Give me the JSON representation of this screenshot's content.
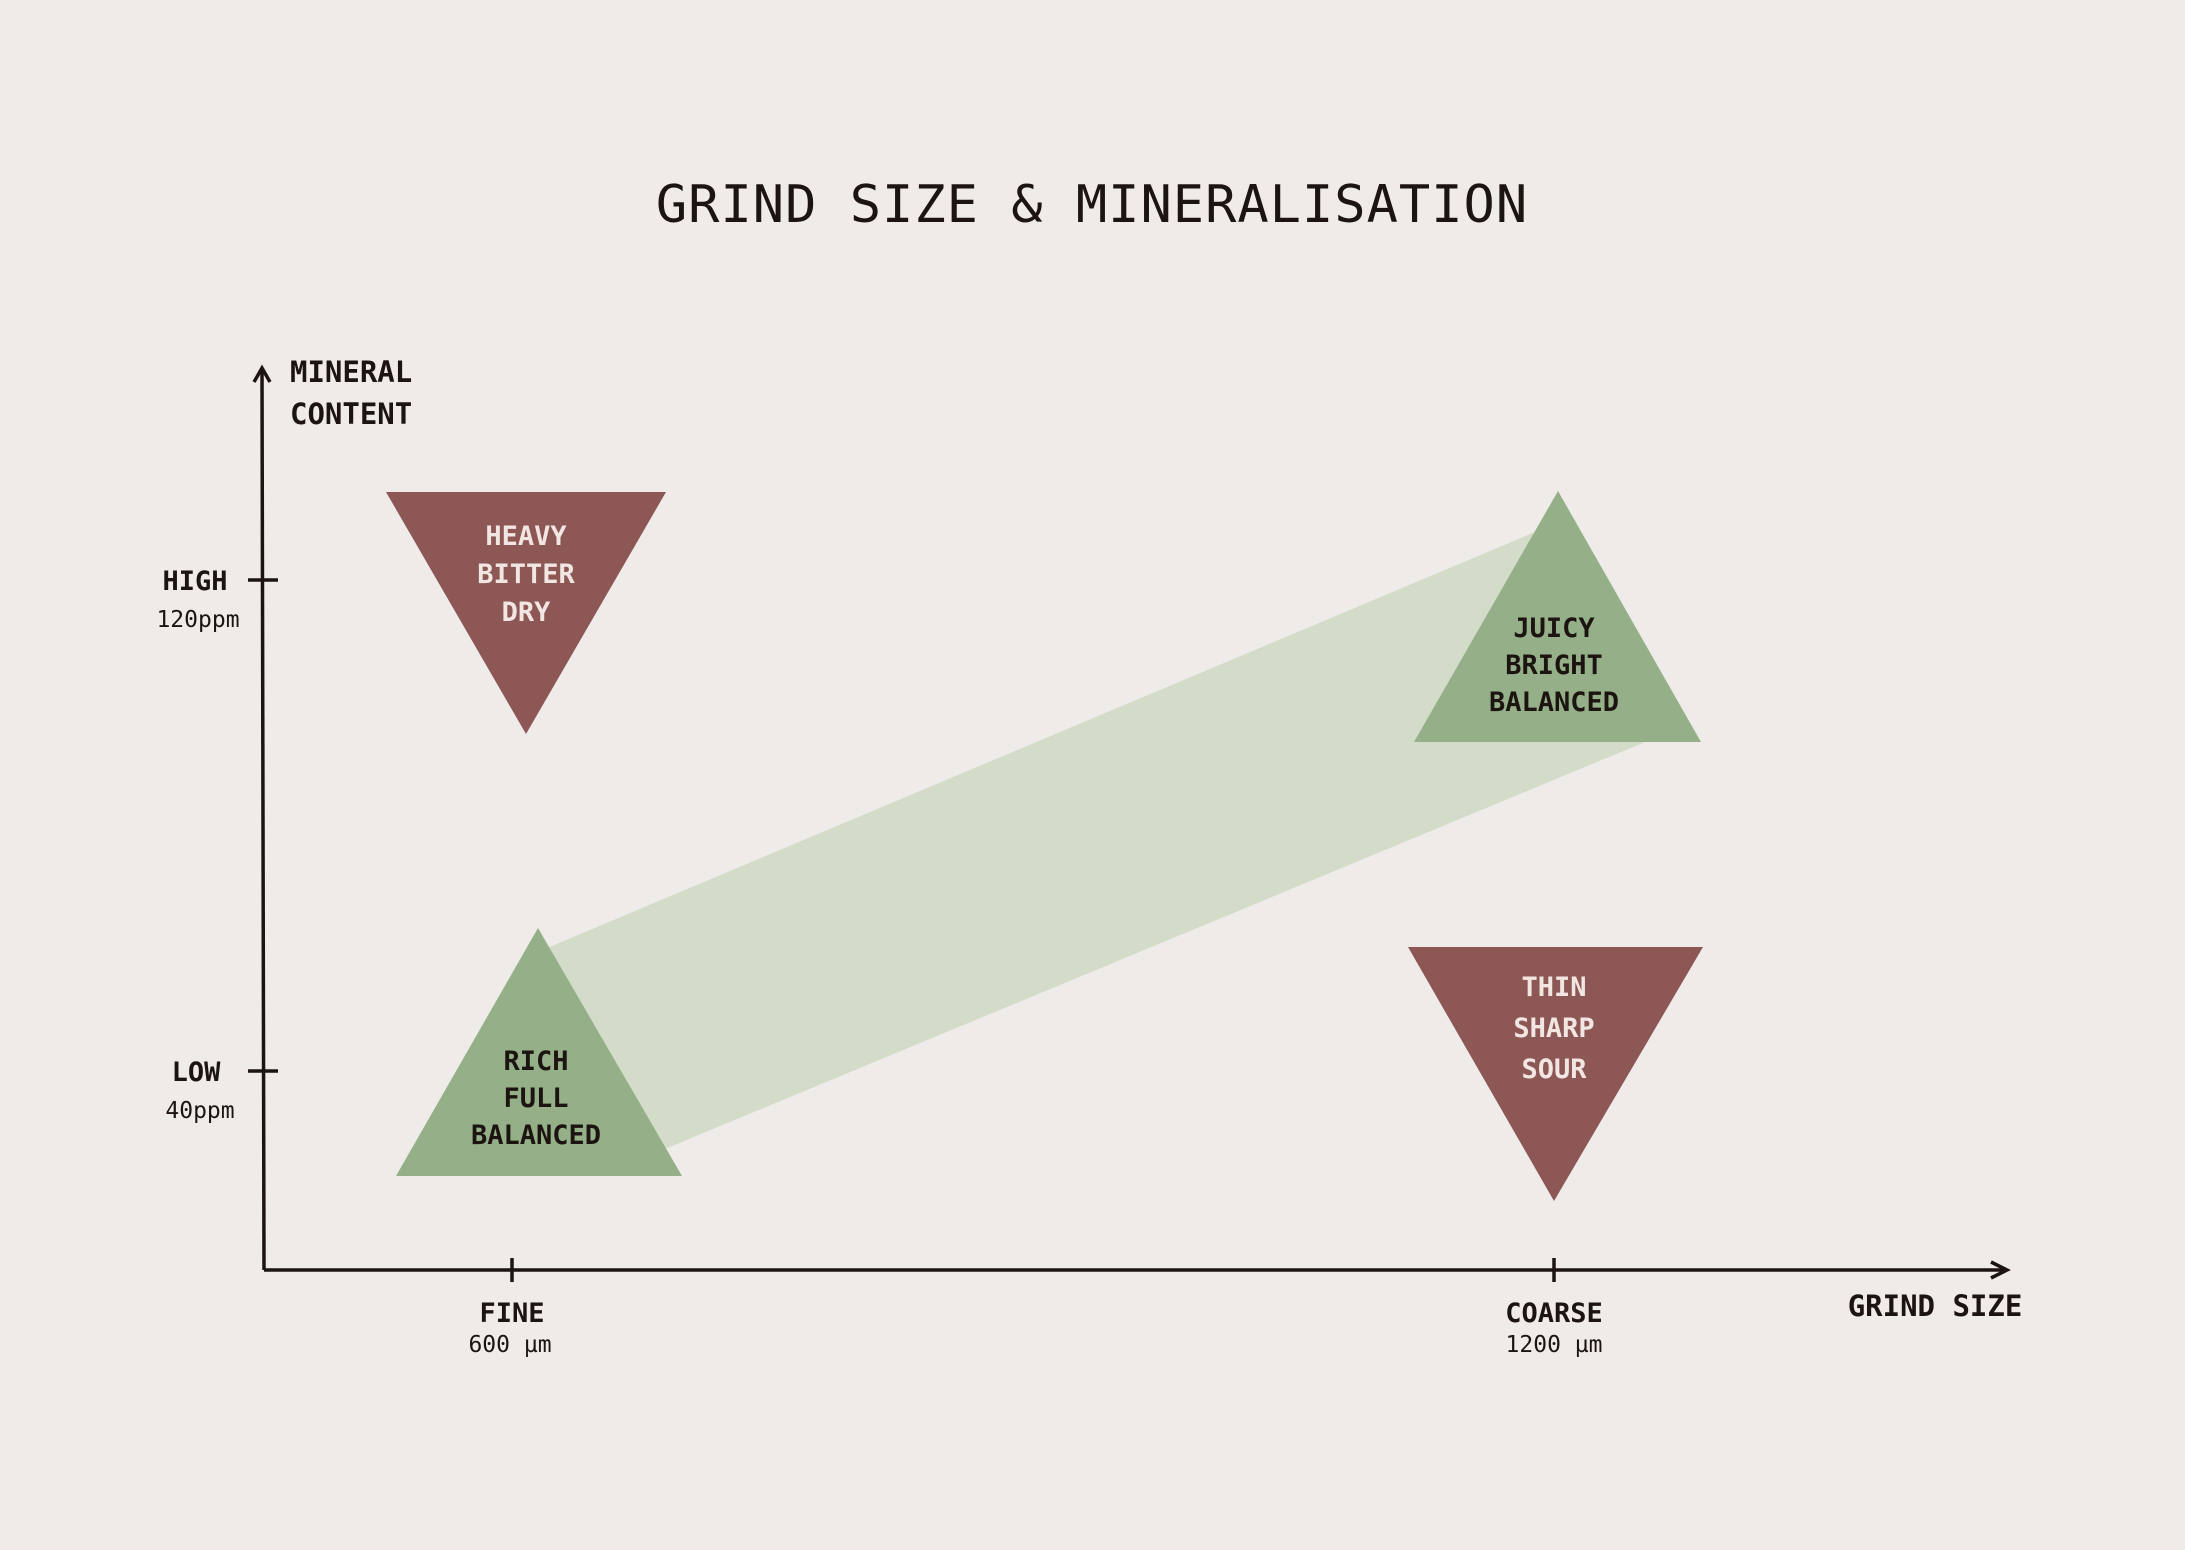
{
  "title": "GRIND SIZE & MINERALISATION",
  "y_axis": {
    "label_lines": [
      "MINERAL",
      "CONTENT"
    ],
    "ticks": [
      {
        "label": "HIGH",
        "sub": "120ppm"
      },
      {
        "label": "LOW",
        "sub": "40ppm"
      }
    ]
  },
  "x_axis": {
    "label": "GRIND SIZE",
    "ticks": [
      {
        "label": "FINE",
        "sub": "600 µm"
      },
      {
        "label": "COARSE",
        "sub": "1200 µm"
      }
    ]
  },
  "zones": [
    {
      "lines": [
        "HEAVY",
        "BITTER",
        "DRY"
      ],
      "kind": "bad"
    },
    {
      "lines": [
        "JUICY",
        "BRIGHT",
        "BALANCED"
      ],
      "kind": "good"
    },
    {
      "lines": [
        "RICH",
        "FULL",
        "BALANCED"
      ],
      "kind": "good"
    },
    {
      "lines": [
        "THIN",
        "SHARP",
        "SOUR"
      ],
      "kind": "bad"
    }
  ],
  "colors": {
    "background": "#efebe8",
    "ink": "#1c1410",
    "good": "#95b088",
    "band": "#d2dcc9",
    "bad": "#8c5755",
    "bad_text": "#f2e6e2",
    "good_text": "#1c1410"
  }
}
